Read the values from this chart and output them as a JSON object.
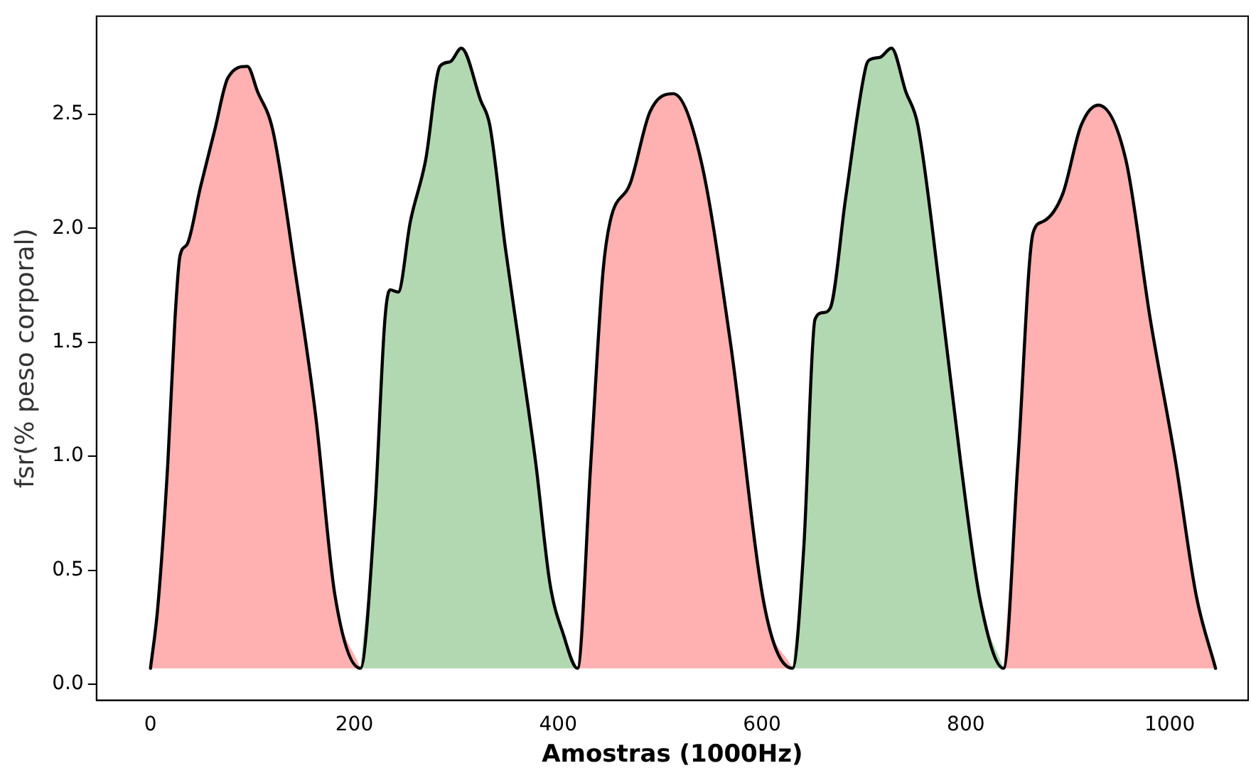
{
  "chart_data": {
    "type": "area",
    "xlabel": "Amostras (1000Hz)",
    "ylabel": "fsr(% peso corporal)",
    "xlim": [
      -53,
      1077
    ],
    "ylim": [
      -0.07,
      2.93
    ],
    "xticks": [
      0,
      200,
      400,
      600,
      800,
      1000
    ],
    "yticks": [
      {
        "value": 0,
        "label": "0.0"
      },
      0.5,
      {
        "value": 1,
        "label": "1.0"
      },
      1.5,
      {
        "value": 2,
        "label": "2.0"
      },
      2.5
    ],
    "grid": false,
    "legend": false,
    "series": [
      {
        "type": "area",
        "color": "#ffb0b0",
        "x": [
          0,
          7,
          17,
          24,
          29,
          36,
          49,
          63,
          76,
          95,
          105,
          120,
          142,
          162,
          181,
          206
        ],
        "values": [
          0.07,
          0.33,
          0.97,
          1.6,
          1.88,
          1.93,
          2.18,
          2.43,
          2.66,
          2.71,
          2.6,
          2.43,
          1.81,
          1.18,
          0.39,
          0.07
        ]
      },
      {
        "type": "area",
        "color": "#b2d8b2",
        "x": [
          206,
          220,
          230,
          235,
          243,
          255,
          270,
          284,
          294,
          305,
          324,
          333,
          348,
          363,
          378,
          392,
          405,
          419
        ],
        "values": [
          0.07,
          0.75,
          1.6,
          1.73,
          1.72,
          2.03,
          2.3,
          2.71,
          2.73,
          2.79,
          2.56,
          2.45,
          1.92,
          1.45,
          0.97,
          0.44,
          0.22,
          0.07
        ]
      },
      {
        "type": "area",
        "color": "#ffb0b0",
        "x": [
          419,
          432,
          444,
          451,
          471,
          490,
          513,
          540,
          569,
          603,
          630
        ],
        "values": [
          0.07,
          0.97,
          1.81,
          2.03,
          2.2,
          2.51,
          2.59,
          2.3,
          1.5,
          0.33,
          0.07
        ]
      },
      {
        "type": "area",
        "color": "#b2d8b2",
        "x": [
          630,
          641,
          652,
          660,
          667,
          682,
          702,
          706,
          716,
          727,
          741,
          753,
          775,
          795,
          814,
          837
        ],
        "values": [
          0.07,
          0.6,
          1.6,
          1.63,
          1.65,
          2.13,
          2.71,
          2.74,
          2.75,
          2.79,
          2.6,
          2.45,
          1.71,
          0.97,
          0.37,
          0.07
        ]
      },
      {
        "type": "area",
        "color": "#ffb0b0",
        "x": [
          837,
          851,
          866,
          876,
          895,
          913,
          930,
          957,
          981,
          1006,
          1026,
          1045
        ],
        "values": [
          0.07,
          0.97,
          1.98,
          2.03,
          2.15,
          2.45,
          2.54,
          2.3,
          1.6,
          0.97,
          0.39,
          0.07
        ]
      },
      {
        "type": "line",
        "color": "#000000",
        "x": [
          0,
          7,
          17,
          24,
          29,
          36,
          49,
          63,
          76,
          95,
          105,
          120,
          142,
          162,
          181,
          206,
          220,
          230,
          235,
          243,
          255,
          270,
          284,
          294,
          305,
          324,
          333,
          348,
          363,
          378,
          392,
          405,
          419,
          432,
          444,
          451,
          471,
          490,
          513,
          540,
          569,
          603,
          630,
          641,
          652,
          660,
          667,
          682,
          702,
          706,
          716,
          727,
          741,
          753,
          775,
          795,
          814,
          837,
          851,
          866,
          876,
          895,
          913,
          930,
          957,
          981,
          1006,
          1026,
          1045
        ],
        "values": [
          0.07,
          0.33,
          0.97,
          1.6,
          1.88,
          1.93,
          2.18,
          2.43,
          2.66,
          2.71,
          2.6,
          2.43,
          1.81,
          1.18,
          0.39,
          0.07,
          0.75,
          1.6,
          1.73,
          1.72,
          2.03,
          2.3,
          2.71,
          2.73,
          2.79,
          2.56,
          2.45,
          1.92,
          1.45,
          0.97,
          0.44,
          0.22,
          0.07,
          0.97,
          1.81,
          2.03,
          2.2,
          2.51,
          2.59,
          2.3,
          1.5,
          0.33,
          0.07,
          0.6,
          1.6,
          1.63,
          1.65,
          2.13,
          2.71,
          2.74,
          2.75,
          2.79,
          2.6,
          2.45,
          1.71,
          0.97,
          0.37,
          0.07,
          0.97,
          1.98,
          2.03,
          2.15,
          2.45,
          2.54,
          2.3,
          1.6,
          0.97,
          0.39,
          0.07
        ]
      }
    ]
  }
}
